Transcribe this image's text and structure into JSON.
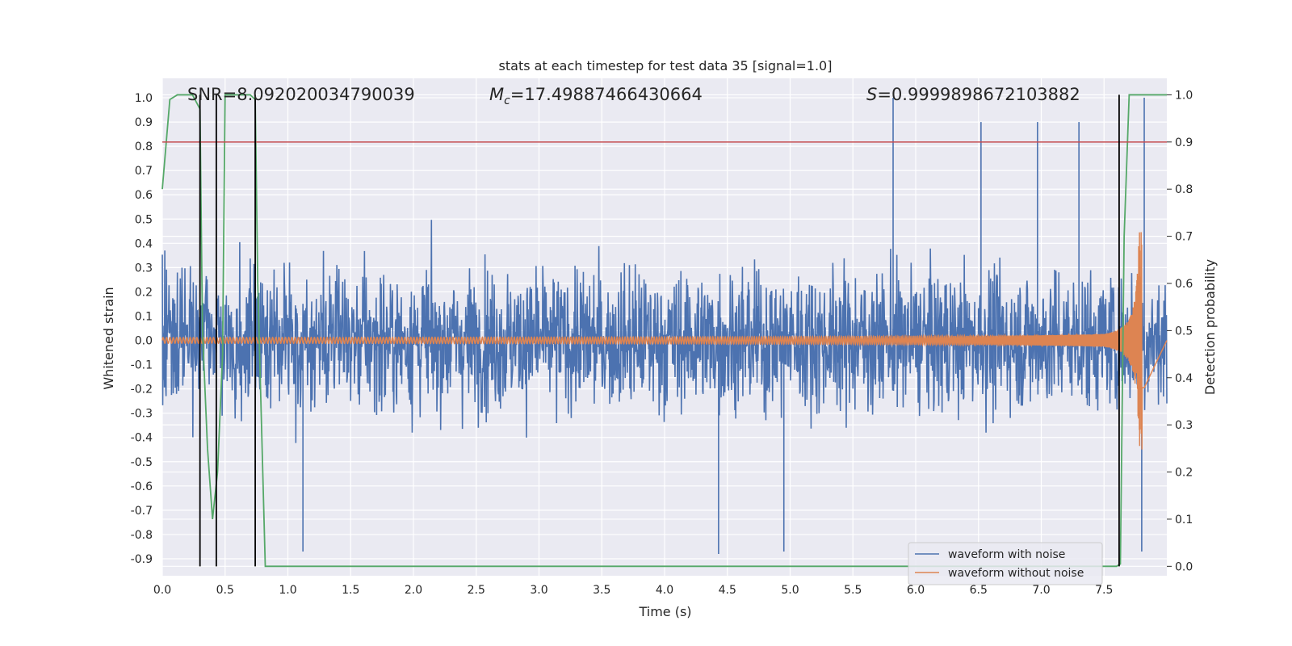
{
  "chart_data": {
    "type": "line",
    "title": "stats at each timestep for test data 35 [signal=1.0]",
    "xlabel": "Time (s)",
    "ylabel": "Whitened strain",
    "y2label": "Detection probability",
    "xlim": [
      0.0,
      8.0
    ],
    "ylim": [
      -0.97,
      1.08
    ],
    "y2lim": [
      -0.02,
      1.035
    ],
    "x_ticks": [
      "0.0",
      "0.5",
      "1.0",
      "1.5",
      "2.0",
      "2.5",
      "3.0",
      "3.5",
      "4.0",
      "4.5",
      "5.0",
      "5.5",
      "6.0",
      "6.5",
      "7.0",
      "7.5"
    ],
    "y_ticks": [
      "1.0",
      "0.9",
      "0.8",
      "0.7",
      "0.6",
      "0.5",
      "0.4",
      "0.3",
      "0.2",
      "0.1",
      "0.0",
      "-0.1",
      "-0.2",
      "-0.3",
      "-0.4",
      "-0.5",
      "-0.6",
      "-0.7",
      "-0.8",
      "-0.9"
    ],
    "y2_ticks": [
      "1.0",
      "0.9",
      "0.8",
      "0.7",
      "0.6",
      "0.5",
      "0.4",
      "0.3",
      "0.2",
      "0.1",
      "0.0"
    ],
    "annotations": {
      "snr": "SNR=8.092020034790039",
      "mc_symbol": "M",
      "mc_sub": "c",
      "mc_value": "=17.49887466430664",
      "s_symbol": "S",
      "s_value": "=0.9999898672103882"
    },
    "threshold": 0.9,
    "vertical_markers": [
      0.3,
      0.43,
      0.74,
      7.62
    ],
    "grid": true,
    "legend_position": "lower right",
    "series": [
      {
        "name": "waveform with noise",
        "color": "#4c72b0",
        "axis": "left",
        "description_values": {
          "x_range": [
            0.0,
            8.0
          ],
          "typical_envelope": [
            -0.45,
            0.5
          ],
          "peaks": [
            [
              5.82,
              1.0
            ],
            [
              6.52,
              0.9
            ],
            [
              6.97,
              0.9
            ],
            [
              7.3,
              0.9
            ],
            [
              7.82,
              1.0
            ],
            [
              4.43,
              -0.88
            ],
            [
              4.95,
              -0.87
            ],
            [
              1.12,
              -0.87
            ],
            [
              7.8,
              -0.87
            ]
          ]
        }
      },
      {
        "name": "waveform without noise",
        "color": "#dd8452",
        "axis": "left",
        "chirp": {
          "start_amplitude": 0.012,
          "peak_time": 7.8,
          "peak_amplitude": 0.45,
          "end_time": 7.82
        }
      },
      {
        "name": "",
        "color": "#55a868",
        "axis": "right",
        "x": [
          0.0,
          0.06,
          0.12,
          0.24,
          0.3,
          0.32,
          0.36,
          0.4,
          0.44,
          0.48,
          0.5,
          0.56,
          0.64,
          0.7,
          0.74,
          0.76,
          0.8,
          0.82,
          1.0,
          7.0,
          7.6,
          7.63,
          7.66,
          7.7,
          7.8,
          8.0
        ],
        "y": [
          0.8,
          0.99,
          1.0,
          1.0,
          0.97,
          0.5,
          0.25,
          0.1,
          0.2,
          0.45,
          1.0,
          1.0,
          1.0,
          1.0,
          0.99,
          0.6,
          0.2,
          0.0,
          0.0,
          0.0,
          0.0,
          0.005,
          0.7,
          1.0,
          1.0,
          1.0
        ]
      },
      {
        "name": "",
        "color": "#c44e52",
        "axis": "right",
        "x": [
          0.0,
          8.0
        ],
        "y": [
          0.9,
          0.9
        ]
      }
    ]
  }
}
